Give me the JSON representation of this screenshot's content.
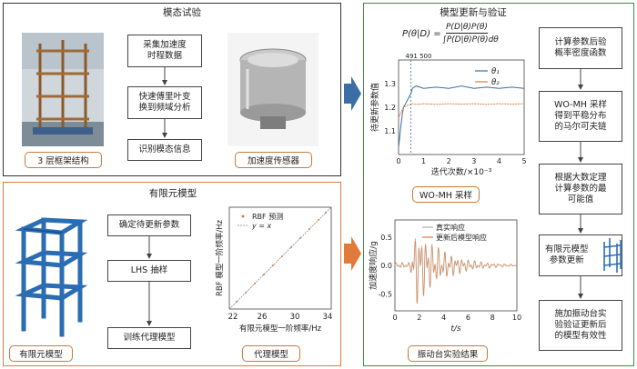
{
  "modal": {
    "title": "模态试验",
    "frame_caption": "3 层框架结构",
    "sensor_caption": "加速度传感器",
    "steps": [
      "采集加速度\n时程数据",
      "快速傅里叶变\n换到频域分析",
      "识别模态信息"
    ]
  },
  "fe": {
    "title": "有限元模型",
    "fe_caption": "有限元模型",
    "surrogate_caption": "代理模型",
    "steps": [
      "确定待更新参数",
      "LHS 抽样",
      "训练代理模型"
    ],
    "plot": {
      "legend_rbf": "RBF 预测",
      "legend_line": "y = x",
      "xlabel": "有限元模型一阶频率/Hz",
      "ylabel": "RBF 模型一阶频率/Hz",
      "xticks": [
        "22",
        "26",
        "30",
        "34"
      ]
    }
  },
  "update": {
    "title": "模型更新与验证",
    "formula_lhs": "P(θ|D) =",
    "formula_num": "P(D|θ)P(θ)",
    "formula_den": "∫P(D|θ)P(θ)dθ",
    "mcmc_caption": "WO-MH 采样",
    "shake_caption": "振动台实验结果",
    "steps": [
      "计算参数后验\n概率密度函数",
      "WO-MH 采样\n得到平稳分布\n的马尔可夫链",
      "根据大数定理\n计算参数的最\n可能值",
      "有限元模型\n参数更新",
      "施加振动台实\n验验证更新后\n的模型有效性"
    ]
  },
  "chart_data": [
    {
      "type": "line",
      "annotation": "491 500",
      "xlabel": "迭代次数/×10⁻³",
      "ylabel": "待更新参数值",
      "xticks": [
        "0",
        "1",
        "2",
        "3",
        "4",
        "5"
      ],
      "yticks": [
        "1.1",
        "1.2",
        "1.3"
      ],
      "xlim": [
        0,
        5
      ],
      "ylim": [
        1.0,
        1.4
      ],
      "series": [
        {
          "name": "θ₁",
          "color": "#3a6ea5",
          "x": [
            0,
            0.05,
            0.1,
            0.15,
            0.2,
            0.3,
            0.4,
            0.5,
            0.55,
            0.7,
            1,
            1.5,
            2,
            2.5,
            3,
            3.5,
            4,
            4.5,
            5
          ],
          "y": [
            1.03,
            1.08,
            1.13,
            1.17,
            1.2,
            1.22,
            1.24,
            1.26,
            1.28,
            1.29,
            1.28,
            1.285,
            1.28,
            1.29,
            1.28,
            1.285,
            1.28,
            1.285,
            1.28
          ]
        },
        {
          "name": "θ₂",
          "color": "#e07b39",
          "x": [
            0,
            0.05,
            0.1,
            0.15,
            0.2,
            0.3,
            0.4,
            0.5,
            0.55,
            0.7,
            1,
            1.5,
            2,
            2.5,
            3,
            3.5,
            4,
            4.5,
            5
          ],
          "y": [
            1.15,
            1.17,
            1.18,
            1.19,
            1.2,
            1.205,
            1.21,
            1.212,
            1.215,
            1.212,
            1.215,
            1.212,
            1.215,
            1.213,
            1.215,
            1.212,
            1.215,
            1.213,
            1.215
          ]
        }
      ]
    },
    {
      "type": "line",
      "xlabel": "t/s",
      "ylabel": "加速度响应/g",
      "xticks": [
        "0",
        "2",
        "4",
        "6",
        "8",
        "10"
      ],
      "yticks": [
        "-0.5",
        "0.0",
        "0.5"
      ],
      "xlim": [
        0,
        10
      ],
      "ylim": [
        -0.8,
        0.8
      ],
      "series": [
        {
          "name": "真实响应",
          "color": "#b0b0b0"
        },
        {
          "name": "更新后模型响应",
          "color": "#e07b39"
        }
      ]
    }
  ]
}
